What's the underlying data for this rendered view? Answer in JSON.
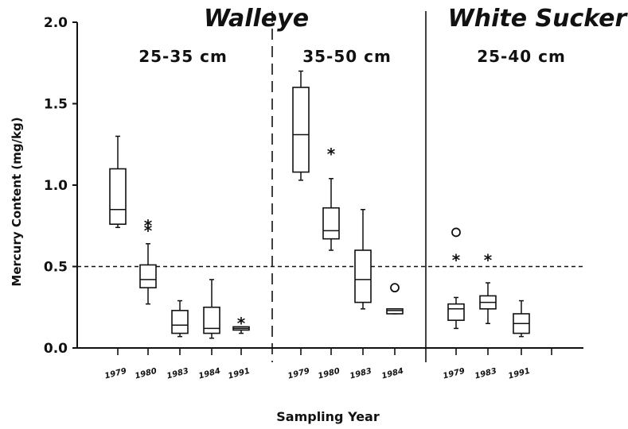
{
  "chart_data": {
    "type": "boxplot",
    "xlabel": "Sampling Year",
    "ylabel": "Mercury Content (mg/kg)",
    "ylim": [
      0,
      2.0
    ],
    "yticks": [
      "0.0",
      "0.5",
      "1.0",
      "1.5",
      "2.0"
    ],
    "reference_line": 0.5,
    "grid": false,
    "panels": [
      {
        "species": "Walleye",
        "size_range": "25-35 cm",
        "boxes": [
          {
            "year": "1979",
            "whisker_low": 0.74,
            "q1": 0.76,
            "median": 0.85,
            "q3": 1.1,
            "whisker_high": 1.3,
            "outliers": []
          },
          {
            "year": "1980",
            "whisker_low": 0.27,
            "q1": 0.37,
            "median": 0.42,
            "q3": 0.51,
            "whisker_high": 0.64,
            "outliers": [
              {
                "value": 0.73,
                "marker": "star"
              },
              {
                "value": 0.76,
                "marker": "star"
              }
            ]
          },
          {
            "year": "1983",
            "whisker_low": 0.07,
            "q1": 0.09,
            "median": 0.14,
            "q3": 0.23,
            "whisker_high": 0.29,
            "outliers": []
          },
          {
            "year": "1984",
            "whisker_low": 0.06,
            "q1": 0.09,
            "median": 0.12,
            "q3": 0.25,
            "whisker_high": 0.42,
            "outliers": []
          },
          {
            "year": "1991",
            "whisker_low": 0.09,
            "q1": 0.11,
            "median": 0.12,
            "q3": 0.13,
            "whisker_high": 0.13,
            "outliers": [
              {
                "value": 0.16,
                "marker": "star"
              }
            ]
          }
        ]
      },
      {
        "species": "",
        "size_range": "35-50 cm",
        "boxes": [
          {
            "year": "1979",
            "whisker_low": 1.03,
            "q1": 1.08,
            "median": 1.31,
            "q3": 1.6,
            "whisker_high": 1.7,
            "outliers": []
          },
          {
            "year": "1980",
            "whisker_low": 0.6,
            "q1": 0.67,
            "median": 0.72,
            "q3": 0.86,
            "whisker_high": 1.04,
            "outliers": [
              {
                "value": 1.2,
                "marker": "star"
              }
            ]
          },
          {
            "year": "1983",
            "whisker_low": 0.24,
            "q1": 0.28,
            "median": 0.42,
            "q3": 0.6,
            "whisker_high": 0.85,
            "outliers": []
          },
          {
            "year": "1984",
            "whisker_low": 0.21,
            "q1": 0.21,
            "median": 0.23,
            "q3": 0.24,
            "whisker_high": 0.24,
            "outliers": [
              {
                "value": 0.37,
                "marker": "circle"
              }
            ]
          }
        ]
      },
      {
        "species": "White Sucker",
        "size_range": "25-40 cm",
        "boxes": [
          {
            "year": "1979",
            "whisker_low": 0.12,
            "q1": 0.17,
            "median": 0.24,
            "q3": 0.27,
            "whisker_high": 0.31,
            "outliers": [
              {
                "value": 0.55,
                "marker": "star"
              },
              {
                "value": 0.71,
                "marker": "circle"
              }
            ]
          },
          {
            "year": "1983",
            "whisker_low": 0.15,
            "q1": 0.24,
            "median": 0.28,
            "q3": 0.32,
            "whisker_high": 0.4,
            "outliers": [
              {
                "value": 0.55,
                "marker": "star"
              }
            ]
          },
          {
            "year": "1991",
            "whisker_low": 0.07,
            "q1": 0.09,
            "median": 0.15,
            "q3": 0.21,
            "whisker_high": 0.29,
            "outliers": []
          }
        ]
      }
    ]
  }
}
